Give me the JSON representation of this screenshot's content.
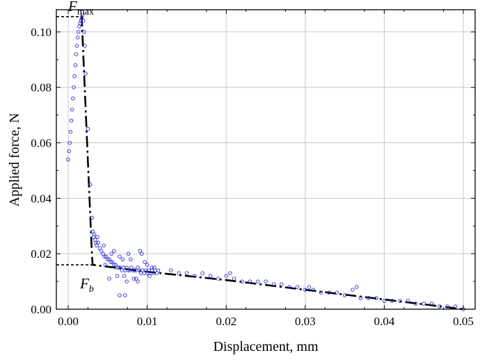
{
  "chart_data": {
    "type": "scatter",
    "title": "",
    "xlabel": "Displacement, mm",
    "ylabel": "Applied force, N",
    "xlim": [
      -0.0015,
      0.0515
    ],
    "ylim": [
      0,
      0.108
    ],
    "xticks": [
      0.0,
      0.01,
      0.02,
      0.03,
      0.04,
      0.05
    ],
    "xtick_labels": [
      "0.00",
      "0.01",
      "0.02",
      "0.03",
      "0.04",
      "0.05"
    ],
    "yticks": [
      0.0,
      0.02,
      0.04,
      0.06,
      0.08,
      0.1
    ],
    "ytick_labels": [
      "0.00",
      "0.02",
      "0.04",
      "0.06",
      "0.08",
      "0.10"
    ],
    "grid": true,
    "colors": {
      "points": "#2a2ad0",
      "model_line": "#000000",
      "grid": "#c8c8c8"
    },
    "series": [
      {
        "type": "scatter",
        "marker": "open-circle",
        "x": [
          0.0,
          0.0001,
          0.0002,
          0.0003,
          0.0004,
          0.0005,
          0.0006,
          0.0007,
          0.0008,
          0.0009,
          0.001,
          0.0011,
          0.0012,
          0.0013,
          0.0014,
          0.0015,
          0.0016,
          0.0017,
          0.0018,
          0.0019,
          0.002,
          0.0021,
          0.0022,
          0.0025,
          0.0028,
          0.003,
          0.0031,
          0.0032,
          0.0033,
          0.0034,
          0.0035,
          0.0036,
          0.0037,
          0.0038,
          0.004,
          0.0042,
          0.0044,
          0.0046,
          0.0048,
          0.005,
          0.0052,
          0.0054,
          0.0056,
          0.0058,
          0.006,
          0.0062,
          0.0064,
          0.0066,
          0.0068,
          0.007,
          0.0072,
          0.0074,
          0.0076,
          0.0078,
          0.008,
          0.0082,
          0.0084,
          0.0086,
          0.0088,
          0.009,
          0.0092,
          0.0094,
          0.0096,
          0.0098,
          0.01,
          0.0102,
          0.0104,
          0.0106,
          0.0108,
          0.011,
          0.0112,
          0.0114,
          0.0045,
          0.0052,
          0.0058,
          0.0065,
          0.0071,
          0.0079,
          0.0086,
          0.0091,
          0.0097,
          0.0103,
          0.0047,
          0.0055,
          0.0062,
          0.0069,
          0.0076,
          0.0083,
          0.0093,
          0.01,
          0.0109,
          0.0065,
          0.0072,
          0.0074,
          0.0088,
          0.0106,
          0.013,
          0.014,
          0.015,
          0.016,
          0.017,
          0.018,
          0.019,
          0.02,
          0.0205,
          0.021,
          0.022,
          0.023,
          0.024,
          0.025,
          0.026,
          0.027,
          0.028,
          0.029,
          0.03,
          0.0305,
          0.031,
          0.032,
          0.033,
          0.034,
          0.035,
          0.036,
          0.0365,
          0.037,
          0.038,
          0.039,
          0.04,
          0.041,
          0.042,
          0.043,
          0.044,
          0.045,
          0.046,
          0.047,
          0.048,
          0.049,
          0.05
        ],
        "y": [
          0.054,
          0.057,
          0.06,
          0.064,
          0.068,
          0.072,
          0.076,
          0.08,
          0.084,
          0.088,
          0.092,
          0.095,
          0.098,
          0.1,
          0.102,
          0.103,
          0.104,
          0.105,
          0.106,
          0.104,
          0.1,
          0.095,
          0.085,
          0.065,
          0.045,
          0.033,
          0.028,
          0.026,
          0.027,
          0.025,
          0.024,
          0.023,
          0.026,
          0.024,
          0.022,
          0.021,
          0.02,
          0.019,
          0.019,
          0.018,
          0.018,
          0.017,
          0.017,
          0.016,
          0.016,
          0.015,
          0.015,
          0.015,
          0.014,
          0.015,
          0.014,
          0.015,
          0.014,
          0.014,
          0.015,
          0.014,
          0.014,
          0.014,
          0.015,
          0.014,
          0.013,
          0.014,
          0.013,
          0.014,
          0.013,
          0.014,
          0.013,
          0.014,
          0.013,
          0.014,
          0.013,
          0.014,
          0.023,
          0.011,
          0.021,
          0.019,
          0.012,
          0.018,
          0.011,
          0.021,
          0.017,
          0.012,
          0.016,
          0.02,
          0.012,
          0.018,
          0.02,
          0.011,
          0.02,
          0.016,
          0.015,
          0.005,
          0.005,
          0.01,
          0.01,
          0.015,
          0.014,
          0.013,
          0.013,
          0.012,
          0.013,
          0.012,
          0.011,
          0.012,
          0.013,
          0.011,
          0.01,
          0.01,
          0.01,
          0.01,
          0.009,
          0.009,
          0.008,
          0.008,
          0.007,
          0.008,
          0.007,
          0.006,
          0.006,
          0.006,
          0.005,
          0.007,
          0.008,
          0.004,
          0.004,
          0.004,
          0.003,
          0.003,
          0.003,
          0.003,
          0.002,
          0.002,
          0.002,
          0.001,
          0.001,
          0.001,
          0.0
        ]
      },
      {
        "type": "line",
        "style": "dash-dot",
        "x": [
          0.0017,
          0.003,
          0.0031,
          0.0045,
          0.01,
          0.02,
          0.03,
          0.04,
          0.05
        ],
        "y": [
          0.106,
          0.02,
          0.016,
          0.0155,
          0.0135,
          0.0105,
          0.007,
          0.0035,
          0.0
        ]
      }
    ],
    "reference_lines": [
      {
        "name": "Fmax",
        "style": "short-dash",
        "y": 0.1055,
        "x": [
          -0.0015,
          0.0017
        ]
      },
      {
        "name": "Fb",
        "style": "short-dash",
        "y": 0.016,
        "x": [
          -0.0015,
          0.0031
        ]
      }
    ],
    "annotations": {
      "fmax": {
        "base": "F",
        "sub": "max",
        "x": 0.0,
        "y": 0.1075
      },
      "fb": {
        "base": "F",
        "sub": "b",
        "x": 0.0015,
        "y": 0.0075
      }
    }
  }
}
